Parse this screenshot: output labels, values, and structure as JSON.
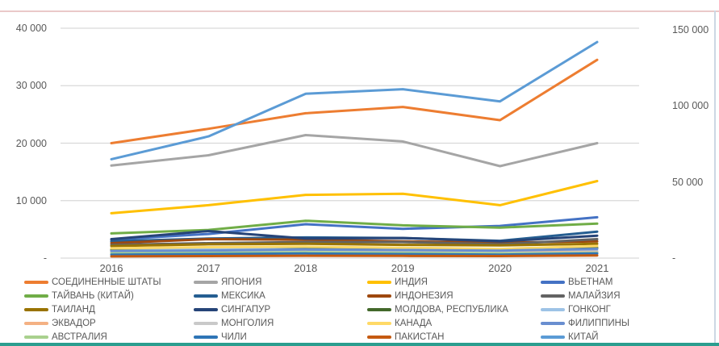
{
  "frame": {
    "top_border_color": "#eac9c9",
    "right_border_color": "#ccd8e4",
    "bottom_strip_color": "#2b9e8f",
    "gridline_color": "#d9d9d9",
    "text_color": "#595959"
  },
  "chart_data": {
    "type": "line",
    "title": "",
    "xlabel": "",
    "ylabel": "",
    "grid": true,
    "legend_position": "bottom",
    "x_labels": [
      "2016",
      "2017",
      "2018",
      "2019",
      "2020",
      "2021"
    ],
    "left_axis": {
      "min": 0,
      "max": 40000,
      "tick_values": [
        40000,
        30000,
        20000,
        10000,
        0
      ],
      "tick_labels": [
        "40 000",
        "30 000",
        "20 000",
        "10 000",
        "-"
      ]
    },
    "right_axis": {
      "min": 0,
      "max": 150000,
      "tick_values": [
        150000,
        100000,
        50000,
        0
      ],
      "tick_labels": [
        "150 000",
        "100 000",
        "50 000",
        "-"
      ]
    },
    "series": [
      {
        "name": "СОЕДИНЕННЫЕ ШТАТЫ",
        "color": "#ED7D31",
        "axis": "left",
        "values": [
          20000,
          22500,
          25200,
          26300,
          24000,
          34500
        ]
      },
      {
        "name": "ЯПОНИЯ",
        "color": "#A5A5A5",
        "axis": "left",
        "values": [
          16100,
          17900,
          21400,
          20300,
          16000,
          20000
        ]
      },
      {
        "name": "ИНДИЯ",
        "color": "#FFC000",
        "axis": "left",
        "values": [
          7800,
          9200,
          11000,
          11200,
          9200,
          13400
        ]
      },
      {
        "name": "ВЬЕТНАМ",
        "color": "#4472C4",
        "axis": "left",
        "values": [
          3200,
          4200,
          5900,
          5100,
          5600,
          7100
        ]
      },
      {
        "name": "ТАЙВАНЬ (КИТАЙ)",
        "color": "#70AD47",
        "axis": "left",
        "values": [
          4300,
          4900,
          6500,
          5700,
          5300,
          6000
        ]
      },
      {
        "name": "МЕКСИКА",
        "color": "#255E91",
        "axis": "left",
        "values": [
          2900,
          3400,
          3600,
          3500,
          3000,
          4600
        ]
      },
      {
        "name": "ИНДОНЕЗИЯ",
        "color": "#9E480E",
        "axis": "left",
        "values": [
          2600,
          3300,
          3200,
          2900,
          2700,
          2900
        ]
      },
      {
        "name": "МАЛАЙЗИЯ",
        "color": "#636363",
        "axis": "left",
        "values": [
          2300,
          2600,
          2800,
          2800,
          2400,
          3300
        ]
      },
      {
        "name": "ТАИЛАНД",
        "color": "#997300",
        "axis": "left",
        "values": [
          2100,
          2400,
          2500,
          2300,
          2200,
          2500
        ]
      },
      {
        "name": "СИНГАПУР",
        "color": "#264478",
        "axis": "left",
        "values": [
          3300,
          4700,
          3400,
          3500,
          2900,
          3900
        ]
      },
      {
        "name": "МОЛДОВА, РЕСПУБЛИКА",
        "color": "#43682B",
        "axis": "left",
        "values": [
          1400,
          1600,
          1700,
          1600,
          1500,
          1800
        ]
      },
      {
        "name": "ГОНКОНГ",
        "color": "#9DC3E6",
        "axis": "left",
        "values": [
          1700,
          1600,
          1500,
          1300,
          1100,
          1200
        ]
      },
      {
        "name": "ЭКВАДОР",
        "color": "#F4B183",
        "axis": "left",
        "values": [
          1000,
          1100,
          1200,
          1100,
          1000,
          1100
        ]
      },
      {
        "name": "МОНГОЛИЯ",
        "color": "#C9C9C9",
        "axis": "left",
        "values": [
          900,
          1000,
          1100,
          1000,
          900,
          1000
        ]
      },
      {
        "name": "КАНАДА",
        "color": "#FFD966",
        "axis": "left",
        "values": [
          1700,
          1900,
          2000,
          1800,
          1600,
          2100
        ]
      },
      {
        "name": "ФИЛИППИНЫ",
        "color": "#698ED0",
        "axis": "left",
        "values": [
          1200,
          1300,
          1500,
          1400,
          1300,
          1600
        ]
      },
      {
        "name": "АВСТРАЛИЯ",
        "color": "#A9D18E",
        "axis": "left",
        "values": [
          800,
          900,
          1000,
          900,
          800,
          900
        ]
      },
      {
        "name": "ЧИЛИ",
        "color": "#2E75B6",
        "axis": "left",
        "values": [
          600,
          700,
          800,
          700,
          600,
          800
        ]
      },
      {
        "name": "ПАКИСТАН",
        "color": "#C55A11",
        "axis": "left",
        "values": [
          300,
          350,
          400,
          380,
          350,
          450
        ]
      },
      {
        "name": "КИТАЙ",
        "color": "#5B9BD5",
        "axis": "right",
        "values": [
          65000,
          80000,
          108000,
          111000,
          103000,
          142000
        ]
      }
    ]
  }
}
